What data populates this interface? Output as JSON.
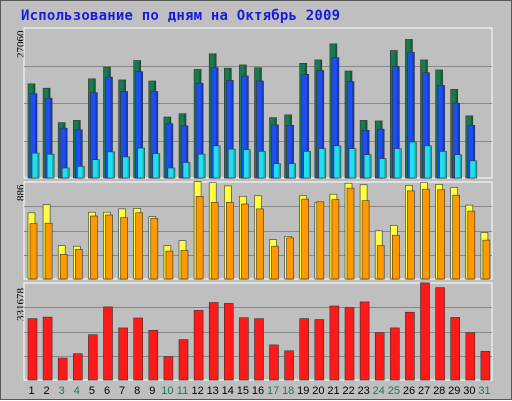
{
  "title": "Использование по дням на Октябрь 2009",
  "chart_data": [
    {
      "type": "bar",
      "y_max_label": "27060",
      "categories": [
        "1",
        "2",
        "3",
        "4",
        "5",
        "6",
        "7",
        "8",
        "9",
        "10",
        "11",
        "12",
        "13",
        "14",
        "15",
        "16",
        "17",
        "18",
        "19",
        "20",
        "21",
        "22",
        "23",
        "24",
        "25",
        "26",
        "27",
        "28",
        "29",
        "30",
        "31"
      ],
      "weekend_days": [
        "3",
        "4",
        "10",
        "11",
        "17",
        "18",
        "24",
        "25",
        "31"
      ],
      "ylim": [
        0,
        27060
      ],
      "series": [
        {
          "values": [
            17000,
            16200,
            10000,
            10400,
            17900,
            20000,
            17700,
            21200,
            17500,
            11000,
            11600,
            19600,
            22400,
            19800,
            20400,
            19900,
            10900,
            11400,
            20700,
            21300,
            24200,
            19300,
            10400,
            10300,
            23000,
            25000,
            21300,
            19500,
            16000,
            11200,
            0
          ],
          "color": "#1a7a4e"
        },
        {
          "values": [
            15200,
            14400,
            9000,
            8700,
            15400,
            18200,
            15600,
            19200,
            15600,
            9800,
            9400,
            17100,
            19900,
            17600,
            18400,
            17500,
            9600,
            9500,
            18700,
            19400,
            21700,
            17400,
            8600,
            8800,
            20100,
            22700,
            19000,
            16700,
            13500,
            9500,
            0
          ],
          "color": "#1f4ef0"
        },
        {
          "values": [
            4500,
            4300,
            1800,
            2100,
            3300,
            4700,
            3800,
            5400,
            4400,
            1800,
            2800,
            4300,
            5800,
            5200,
            5100,
            4800,
            2600,
            2600,
            4800,
            5300,
            5800,
            5300,
            4200,
            3500,
            5300,
            6500,
            5800,
            4800,
            4200,
            3100,
            0
          ],
          "color": "#20e0f0"
        }
      ]
    },
    {
      "type": "bar",
      "y_max_label": "886",
      "categories": [
        "1",
        "2",
        "3",
        "4",
        "5",
        "6",
        "7",
        "8",
        "9",
        "10",
        "11",
        "12",
        "13",
        "14",
        "15",
        "16",
        "17",
        "18",
        "19",
        "20",
        "21",
        "22",
        "23",
        "24",
        "25",
        "26",
        "27",
        "28",
        "29",
        "30",
        "31"
      ],
      "ylim": [
        0,
        886
      ],
      "series": [
        {
          "values": [
            605,
            680,
            305,
            300,
            610,
            610,
            640,
            645,
            570,
            305,
            350,
            890,
            880,
            850,
            755,
            760,
            360,
            390,
            760,
            700,
            775,
            875,
            860,
            440,
            490,
            855,
            880,
            865,
            835,
            675,
            425
          ],
          "color": "#ffff40"
        },
        {
          "values": [
            505,
            510,
            225,
            270,
            575,
            585,
            560,
            605,
            555,
            255,
            260,
            755,
            700,
            700,
            685,
            640,
            300,
            375,
            730,
            705,
            725,
            830,
            715,
            305,
            400,
            805,
            820,
            815,
            765,
            620,
            355
          ],
          "color": "#ff9900"
        }
      ]
    },
    {
      "type": "bar",
      "y_max_label": "331678",
      "categories": [
        "1",
        "2",
        "3",
        "4",
        "5",
        "6",
        "7",
        "8",
        "9",
        "10",
        "11",
        "12",
        "13",
        "14",
        "15",
        "16",
        "17",
        "18",
        "19",
        "20",
        "21",
        "22",
        "23",
        "24",
        "25",
        "26",
        "27",
        "28",
        "29",
        "30",
        "31"
      ],
      "ylim": [
        0,
        331678
      ],
      "series": [
        {
          "values": [
            210000,
            215000,
            75000,
            90000,
            155000,
            250000,
            178000,
            212000,
            170000,
            80000,
            138000,
            238000,
            265000,
            262000,
            213000,
            210000,
            120000,
            100000,
            210000,
            207000,
            253000,
            248000,
            267000,
            162000,
            178000,
            232000,
            332000,
            316000,
            214000,
            162000,
            98000
          ],
          "color": "#ff1a1a"
        }
      ]
    }
  ],
  "colors": {
    "background": "#bfbfbf",
    "plot_background": "#bfbfbf",
    "title_text": "#1a1adc",
    "weekday_label": "#000000",
    "weekend_label": "#1a7a4e"
  }
}
